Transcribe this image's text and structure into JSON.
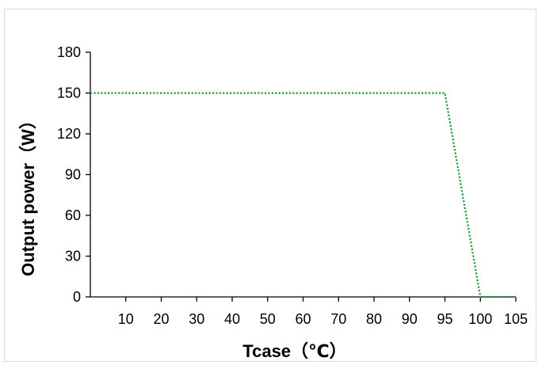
{
  "chart_data": {
    "type": "line",
    "title": "",
    "xlabel": "Tcase（℃）",
    "ylabel": "Output power（W）",
    "x_tick_labels": [
      "10",
      "20",
      "30",
      "40",
      "50",
      "60",
      "70",
      "80",
      "90",
      "95",
      "100",
      "105"
    ],
    "y_tick_labels": [
      "0",
      "30",
      "60",
      "90",
      "120",
      "150",
      "180"
    ],
    "ylim": [
      0,
      180
    ],
    "grid": false,
    "legend": "none",
    "series": [
      {
        "x": [
          "0",
          "95",
          "100",
          "105"
        ],
        "values": [
          150,
          150,
          0,
          0
        ],
        "color": "#1a9a3a",
        "line_style": "dotted"
      }
    ]
  }
}
